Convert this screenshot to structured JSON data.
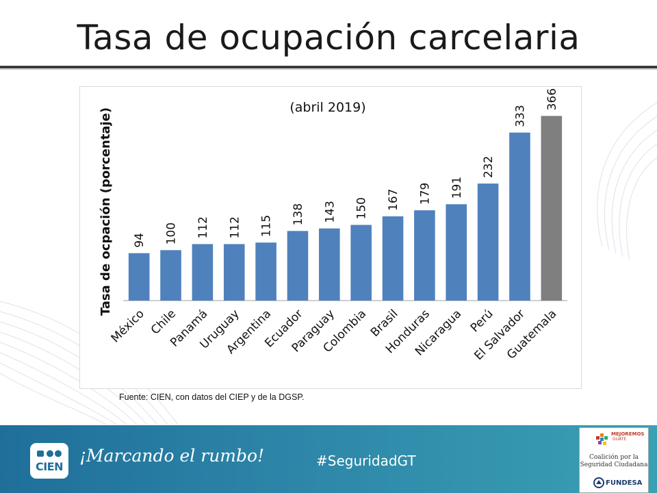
{
  "slide": {
    "title": "Tasa de ocupación carcelaria",
    "source_note": "Fuente: CIEN, con datos del CIEP y de la DGSP."
  },
  "chart_data": {
    "type": "bar",
    "subtitle": "(abril 2019)",
    "ylabel": "Tasa de ocpación (porcentaje)",
    "xlabel": "",
    "ylim": [
      0,
      380
    ],
    "grid": false,
    "legend": "none",
    "categories": [
      "México",
      "Chile",
      "Panamá",
      "Uruguay",
      "Argentina",
      "Ecuador",
      "Paraguay",
      "Colombia",
      "Brasil",
      "Honduras",
      "Nicaragua",
      "Perú",
      "El Salvador",
      "Guatemala"
    ],
    "values": [
      94,
      100,
      112,
      112,
      115,
      138,
      143,
      150,
      167,
      179,
      191,
      232,
      333,
      366
    ],
    "bar_color": "#4f81bd",
    "highlight_color": "#7f7f7f",
    "highlight_category": "Guatemala"
  },
  "footer": {
    "logo_text": "CIEN",
    "slogan": "¡Marcando el rumbo!",
    "hashtag": "#SeguridadGT",
    "partner_brand_line1": "MEJOREMOS",
    "partner_brand_line2": "GUATE",
    "partner_line1": "Coalición por la",
    "partner_line2": "Seguridad Ciudadana",
    "partner_org": "FUNDESA"
  }
}
